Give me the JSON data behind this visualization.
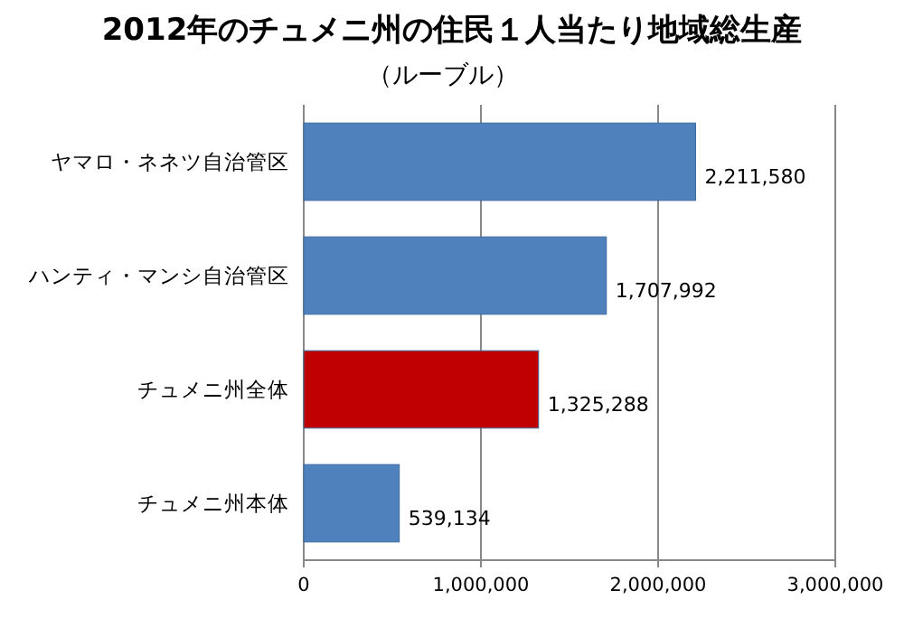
{
  "chart_data": {
    "type": "bar",
    "orientation": "horizontal",
    "title": "2012年のチュメニ州の住民１人当たり地域総生産",
    "subtitle": "（ルーブル）",
    "categories": [
      "ヤマロ・ネネツ自治管区",
      "ハンティ・マンシ自治管区",
      "チュメニ州全体",
      "チュメニ州本体"
    ],
    "values": [
      2211580,
      1707992,
      1325288,
      539134
    ],
    "colors": [
      "#4f81bd",
      "#4f81bd",
      "#c00000",
      "#4f81bd"
    ],
    "value_labels": [
      "2,211,580",
      "1,707,992",
      "1,325,288",
      "539,134"
    ],
    "xlim": [
      0,
      3000000
    ],
    "xticks": [
      0,
      {
        "value": 1000000,
        "label": "1,000,000"
      },
      {
        "value": 2000000,
        "label": "2,000,000"
      },
      {
        "value": 3000000,
        "label": "3,000,000"
      }
    ],
    "grid": "x"
  }
}
